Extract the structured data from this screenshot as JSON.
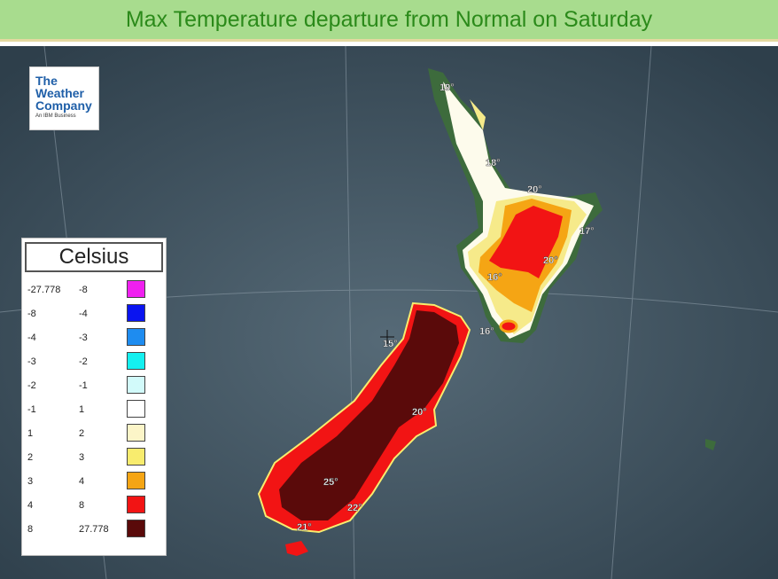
{
  "header": {
    "title": "Max Temperature departure from Normal on Saturday"
  },
  "logo": {
    "line1": "The",
    "line2": "Weather",
    "line3": "Company",
    "line4": "An IBM Business"
  },
  "legend": {
    "title": "Celsius",
    "rows": [
      {
        "from": "-27.778",
        "to": "-8",
        "color": "#f020f0"
      },
      {
        "from": "-8",
        "to": "-4",
        "color": "#0a14f0"
      },
      {
        "from": "-4",
        "to": "-3",
        "color": "#1e8cf0"
      },
      {
        "from": "-3",
        "to": "-2",
        "color": "#14f0f0"
      },
      {
        "from": "-2",
        "to": "-1",
        "color": "#d2fafa"
      },
      {
        "from": "-1",
        "to": "1",
        "color": "#ffffff"
      },
      {
        "from": "1",
        "to": "2",
        "color": "#fcf5c8"
      },
      {
        "from": "2",
        "to": "3",
        "color": "#f8ec6e"
      },
      {
        "from": "3",
        "to": "4",
        "color": "#f5a514"
      },
      {
        "from": "4",
        "to": "8",
        "color": "#f21414"
      },
      {
        "from": "8",
        "to": "27.778",
        "color": "#5a0a0a"
      }
    ]
  },
  "labels": [
    "19°",
    "18°",
    "20°",
    "17°",
    "20°",
    "16°",
    "16°",
    "15°",
    "20°",
    "25°",
    "22°",
    "21°"
  ]
}
